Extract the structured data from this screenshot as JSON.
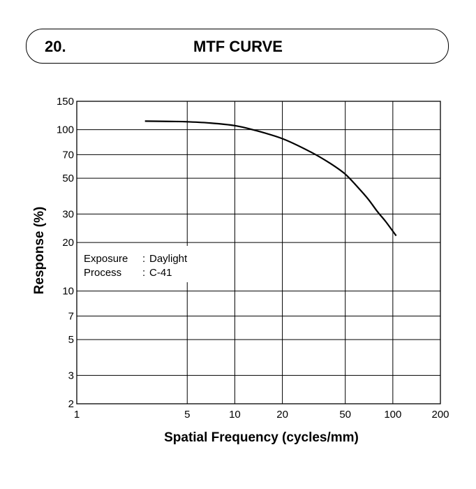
{
  "header": {
    "section_number": "20.",
    "title": "MTF CURVE"
  },
  "chart_data": {
    "type": "line",
    "title": "MTF CURVE",
    "xlabel": "Spatial Frequency (cycles/mm)",
    "ylabel": "Response (%)",
    "x_scale": "log",
    "y_scale": "log",
    "xlim": [
      1,
      200
    ],
    "ylim": [
      2,
      150
    ],
    "grid": true,
    "x_ticks": [
      1,
      5,
      10,
      20,
      50,
      100,
      200
    ],
    "x_tick_labels": [
      "1",
      "5",
      "10",
      "20",
      "50",
      "100",
      "200"
    ],
    "y_ticks": [
      2,
      3,
      5,
      7,
      10,
      20,
      30,
      50,
      70,
      100,
      150
    ],
    "y_tick_labels": [
      "2",
      "3",
      "5",
      "7",
      "10",
      "20",
      "30",
      "50",
      "70",
      "100",
      "150"
    ],
    "series": [
      {
        "name": "MTF",
        "x": [
          2.7,
          4,
          5,
          7,
          10,
          13,
          20,
          30,
          40,
          50,
          60,
          70,
          80,
          90,
          105
        ],
        "y": [
          113,
          112.5,
          112,
          110,
          106,
          100,
          88,
          73,
          62,
          53,
          44,
          37,
          31,
          27,
          22
        ]
      }
    ],
    "annotations": [
      {
        "label": "Exposure",
        "separator": ":",
        "value": "Daylight"
      },
      {
        "label": "Process",
        "separator": ":",
        "value": "C-41"
      }
    ]
  }
}
